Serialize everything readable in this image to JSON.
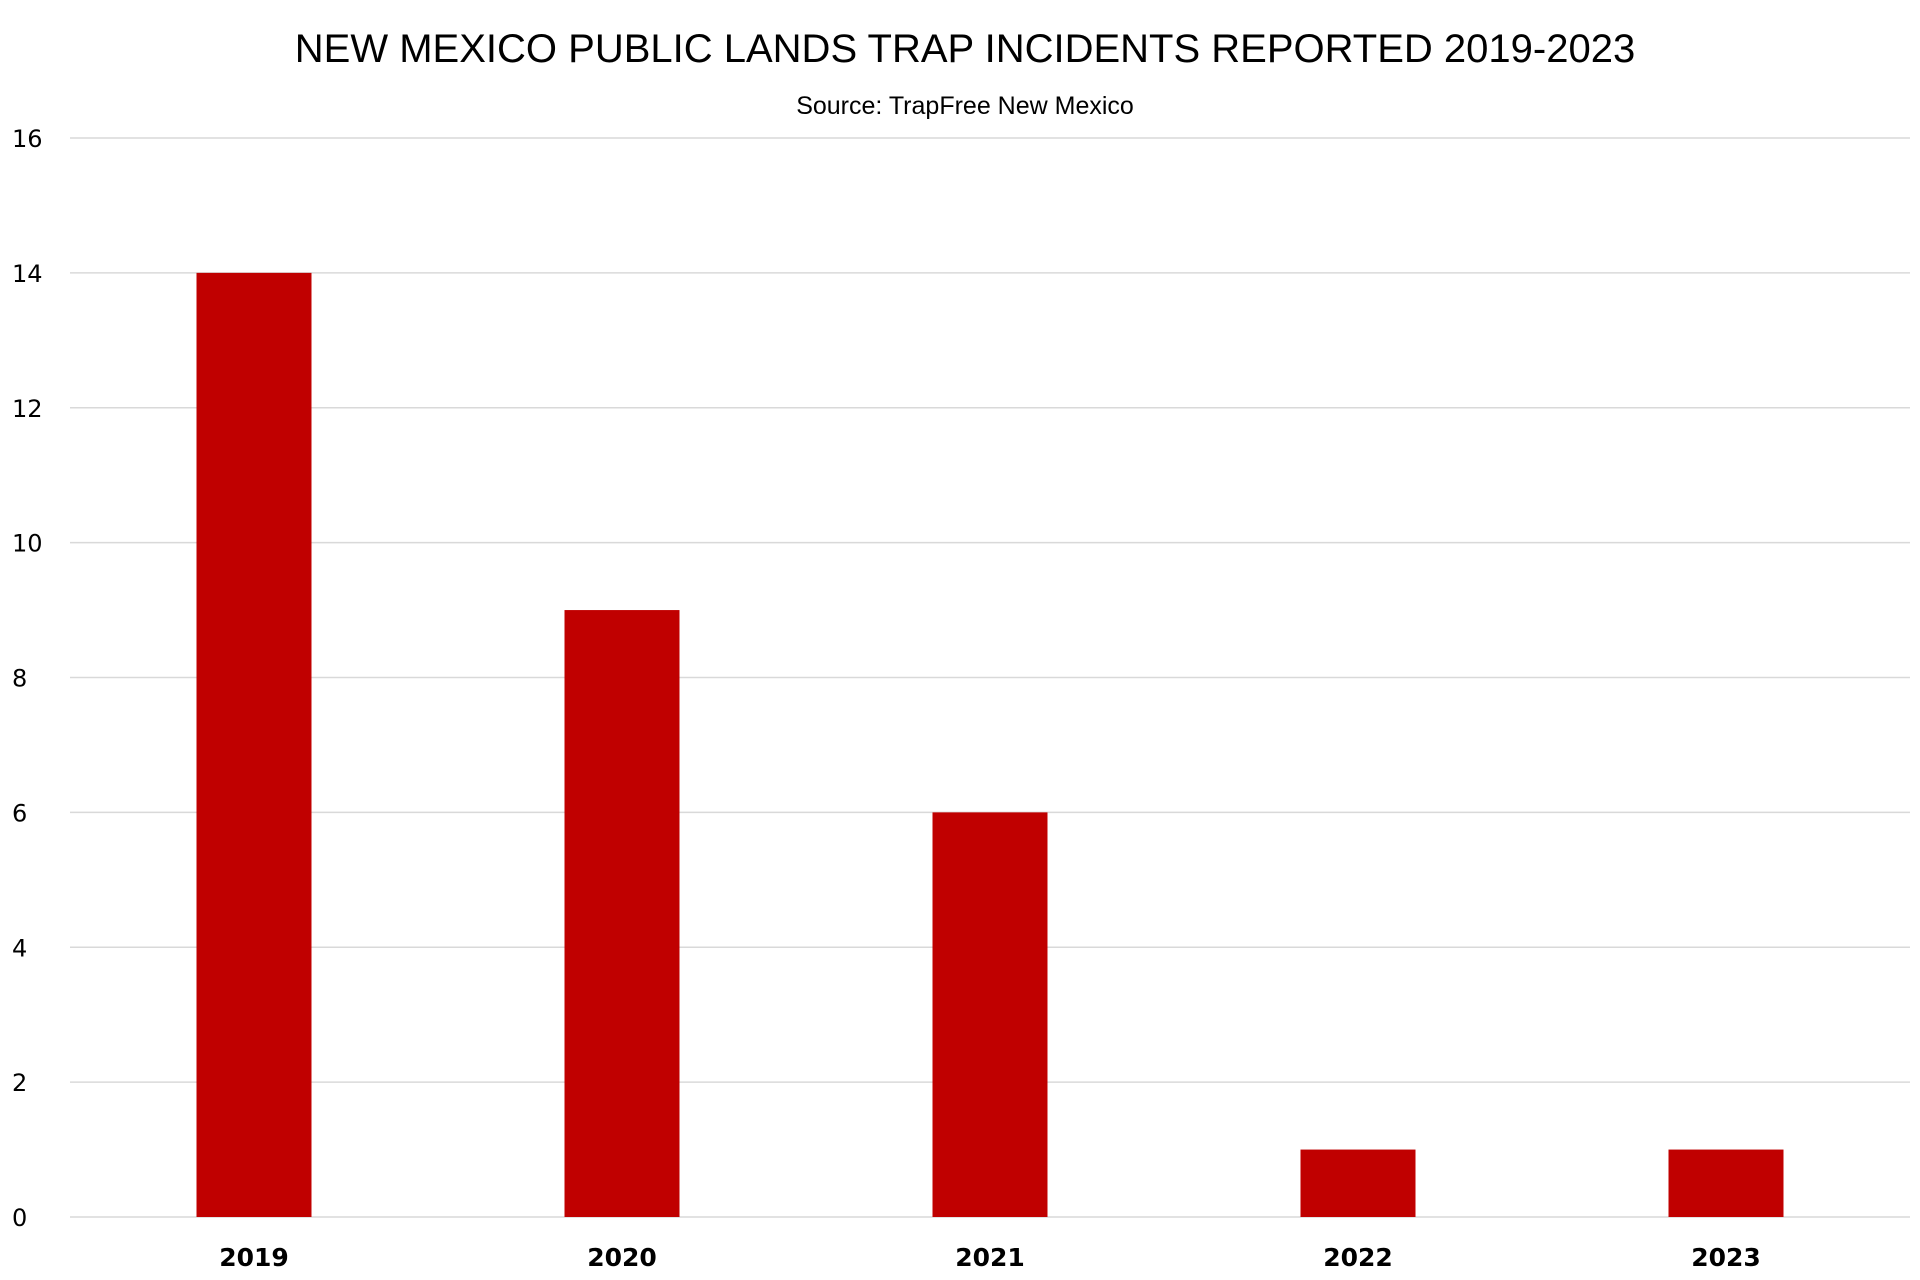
{
  "chart_data": {
    "type": "bar",
    "title": "NEW MEXICO PUBLIC LANDS TRAP INCIDENTS REPORTED 2019-2023",
    "subtitle": "Source: TrapFree New Mexico",
    "categories": [
      "2019",
      "2020",
      "2021",
      "2022",
      "2023"
    ],
    "values": [
      14,
      9,
      6,
      1,
      1
    ],
    "xlabel": "",
    "ylabel": "",
    "ylim": [
      0,
      16
    ],
    "yticks": [
      0,
      2,
      4,
      6,
      8,
      10,
      12,
      14,
      16
    ],
    "grid": true,
    "legend": "none",
    "bar_color": "#c00000"
  }
}
